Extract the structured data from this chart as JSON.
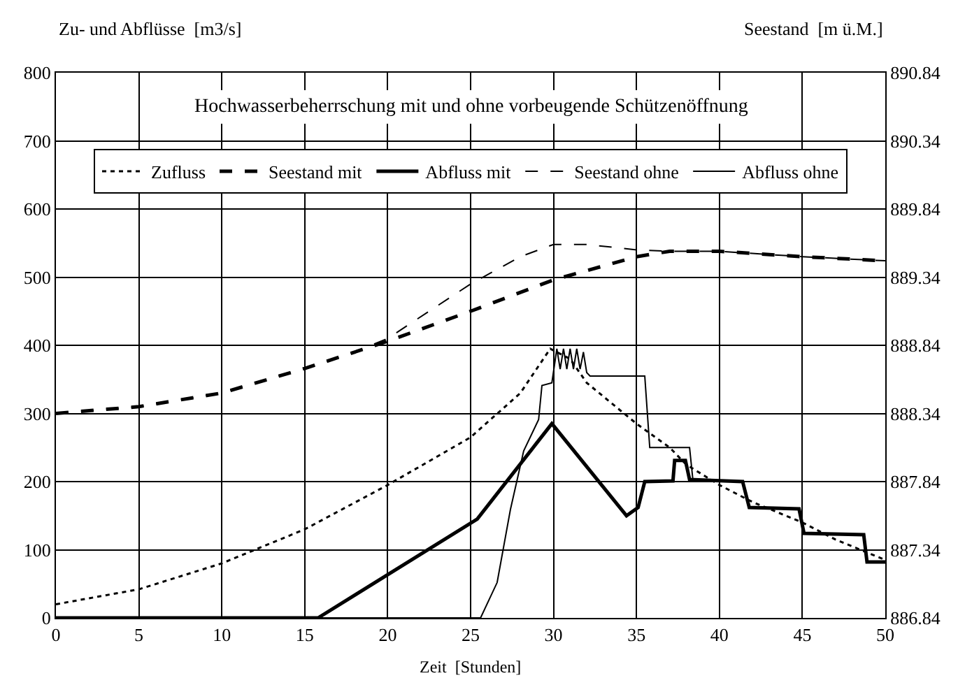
{
  "chart_data": {
    "type": "line",
    "title": "Hochwasserbeherrschung mit und ohne vorbeugende Schützenöffnung",
    "xlabel": "Zeit  [Stunden]",
    "ylabel": "Zu- und Abflüsse  [m3/s]",
    "y2label": "Seestand  [m ü.M.]",
    "xlim": [
      0,
      50
    ],
    "xticks": [
      0,
      5,
      10,
      15,
      20,
      25,
      30,
      35,
      40,
      45,
      50
    ],
    "ylim": [
      0,
      800
    ],
    "yticks": [
      0,
      100,
      200,
      300,
      400,
      500,
      600,
      700,
      800
    ],
    "y2lim": [
      886.84,
      890.84
    ],
    "y2ticks": [
      886.84,
      887.34,
      887.84,
      888.34,
      888.84,
      889.34,
      889.84,
      890.34,
      890.84
    ],
    "grid": true,
    "legend": "top",
    "marker": "none",
    "series": [
      {
        "name": "Zufluss",
        "color": "#000000",
        "line_style": "dotted",
        "x": [
          0,
          5,
          10,
          15,
          20,
          25,
          28,
          29.8,
          31,
          32,
          35,
          37,
          38,
          40,
          42,
          45,
          47,
          49,
          50
        ],
        "values": [
          20,
          42,
          80,
          130,
          195,
          265,
          330,
          395,
          380,
          345,
          285,
          250,
          225,
          195,
          170,
          140,
          115,
          95,
          85
        ]
      },
      {
        "name": "Seestand mit",
        "color": "#000000",
        "line_style": "dashed",
        "axis": "y2",
        "x": [
          0,
          5,
          10,
          15,
          20,
          25,
          30,
          35,
          37,
          40,
          45,
          50
        ],
        "values": [
          888.34,
          888.39,
          888.49,
          888.67,
          888.87,
          889.09,
          889.32,
          889.49,
          889.53,
          889.53,
          889.49,
          889.46
        ]
      },
      {
        "name": "Abfluss mit",
        "color": "#000000",
        "line_style": "solid",
        "x": [
          0,
          15.8,
          25.4,
          29.9,
          34.4,
          35.1,
          35.5,
          37.2,
          37.3,
          37.95,
          38.2,
          41.4,
          41.8,
          44.8,
          45.1,
          48.7,
          48.9,
          50
        ],
        "values": [
          0,
          0,
          145,
          285,
          150,
          162,
          200,
          201,
          231,
          231,
          203,
          200,
          162,
          160,
          124,
          122,
          82,
          82
        ]
      },
      {
        "name": "Seestand ohne",
        "color": "#000000",
        "line_style": "dashed",
        "axis": "y2",
        "x": [
          0,
          5,
          10,
          15,
          18,
          20,
          25,
          28,
          30,
          32,
          35,
          37,
          40,
          45,
          50
        ],
        "values": [
          888.34,
          888.39,
          888.49,
          888.67,
          888.79,
          888.89,
          889.29,
          889.49,
          889.58,
          889.58,
          889.54,
          889.53,
          889.53,
          889.49,
          889.46
        ]
      },
      {
        "name": "Abfluss ohne",
        "color": "#000000",
        "line_style": "solid",
        "x": [
          0,
          25.6,
          26.6,
          27.4,
          28.2,
          29.1,
          29.3,
          29.9,
          30.2,
          30.4,
          30.6,
          30.8,
          31,
          31.2,
          31.4,
          31.6,
          31.8,
          32,
          32.2,
          35.5,
          35.8,
          38.2,
          38.4,
          41.4,
          41.8,
          44.8,
          45.1,
          48.7,
          48.9,
          50
        ],
        "values": [
          0,
          0,
          52,
          159,
          245,
          291,
          341,
          345,
          395,
          365,
          395,
          365,
          395,
          365,
          395,
          365,
          390,
          360,
          355,
          355,
          250,
          250,
          203,
          200,
          162,
          160,
          124,
          122,
          82,
          82
        ]
      }
    ]
  }
}
